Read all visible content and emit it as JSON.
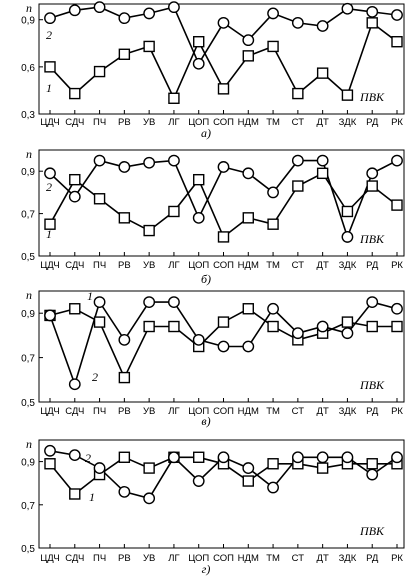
{
  "chart_data": [
    {
      "type": "line",
      "panel_label": "а)",
      "ylabel": "n",
      "annotation": "ПВК",
      "ylim": [
        0.3,
        1.0
      ],
      "yticks": [
        0.3,
        0.6,
        0.9
      ],
      "categories": [
        "ЦДЧ",
        "СДЧ",
        "ПЧ",
        "РВ",
        "УВ",
        "ЛГ",
        "ЦОП",
        "СОП",
        "НДМ",
        "ТМ",
        "СТ",
        "ДТ",
        "ЗДК",
        "РД",
        "РК"
      ],
      "series": [
        {
          "name": "1",
          "marker": "square",
          "values": [
            0.6,
            0.43,
            0.57,
            0.68,
            0.73,
            0.4,
            0.76,
            0.46,
            0.67,
            0.73,
            0.43,
            0.56,
            0.42,
            0.88,
            0.76
          ]
        },
        {
          "name": "2",
          "marker": "circle",
          "values": [
            0.91,
            0.96,
            0.98,
            0.91,
            0.94,
            0.98,
            0.62,
            0.88,
            0.77,
            0.94,
            0.88,
            0.86,
            0.97,
            0.95,
            0.93
          ]
        }
      ]
    },
    {
      "type": "line",
      "panel_label": "б)",
      "ylabel": "n",
      "annotation": "ПВК",
      "ylim": [
        0.5,
        1.0
      ],
      "yticks": [
        0.5,
        0.7,
        0.9
      ],
      "categories": [
        "ЦДЧ",
        "СДЧ",
        "ПЧ",
        "РВ",
        "УВ",
        "ЛГ",
        "ЦОП",
        "СОП",
        "НДМ",
        "ТМ",
        "СТ",
        "ДТ",
        "ЗДК",
        "РД",
        "РК"
      ],
      "series": [
        {
          "name": "1",
          "marker": "square",
          "values": [
            0.65,
            0.86,
            0.77,
            0.68,
            0.62,
            0.71,
            0.86,
            0.59,
            0.68,
            0.65,
            0.83,
            0.89,
            0.71,
            0.83,
            0.74
          ]
        },
        {
          "name": "2",
          "marker": "circle",
          "values": [
            0.89,
            0.78,
            0.95,
            0.92,
            0.94,
            0.95,
            0.68,
            0.92,
            0.89,
            0.8,
            0.95,
            0.95,
            0.59,
            0.89,
            0.95
          ]
        }
      ]
    },
    {
      "type": "line",
      "panel_label": "в)",
      "ylabel": "n",
      "annotation": "ПВК",
      "ylim": [
        0.5,
        1.0
      ],
      "yticks": [
        0.5,
        0.7,
        0.9
      ],
      "categories": [
        "ЦДЧ",
        "СДЧ",
        "ПЧ",
        "РВ",
        "УВ",
        "ЛГ",
        "ЦОП",
        "СОП",
        "НДМ",
        "ТМ",
        "СТ",
        "ДТ",
        "ЗДК",
        "РД",
        "РК"
      ],
      "series": [
        {
          "name": "1",
          "marker": "square",
          "values": [
            0.89,
            0.92,
            0.86,
            0.61,
            0.84,
            0.84,
            0.75,
            0.86,
            0.92,
            0.84,
            0.78,
            0.81,
            0.86,
            0.84,
            0.84
          ]
        },
        {
          "name": "2",
          "marker": "circle",
          "values": [
            0.89,
            0.58,
            0.95,
            0.78,
            0.95,
            0.95,
            0.78,
            0.75,
            0.75,
            0.92,
            0.81,
            0.84,
            0.81,
            0.95,
            0.92
          ]
        }
      ]
    },
    {
      "type": "line",
      "panel_label": "г)",
      "ylabel": "n",
      "annotation": "ПВК",
      "ylim": [
        0.5,
        1.0
      ],
      "yticks": [
        0.5,
        0.7,
        0.9
      ],
      "categories": [
        "ЦДЧ",
        "СДЧ",
        "ПЧ",
        "РВ",
        "УВ",
        "ЛГ",
        "ЦОП",
        "СОП",
        "НДМ",
        "ТМ",
        "СТ",
        "ДТ",
        "ЗДК",
        "РД",
        "РК"
      ],
      "series": [
        {
          "name": "1",
          "marker": "square",
          "values": [
            0.89,
            0.75,
            0.84,
            0.92,
            0.87,
            0.92,
            0.92,
            0.89,
            0.81,
            0.89,
            0.89,
            0.87,
            0.89,
            0.89,
            0.89
          ]
        },
        {
          "name": "2",
          "marker": "circle",
          "values": [
            0.95,
            0.93,
            0.87,
            0.76,
            0.73,
            0.92,
            0.81,
            0.92,
            0.87,
            0.78,
            0.92,
            0.92,
            0.92,
            0.84,
            0.92
          ]
        }
      ]
    }
  ]
}
